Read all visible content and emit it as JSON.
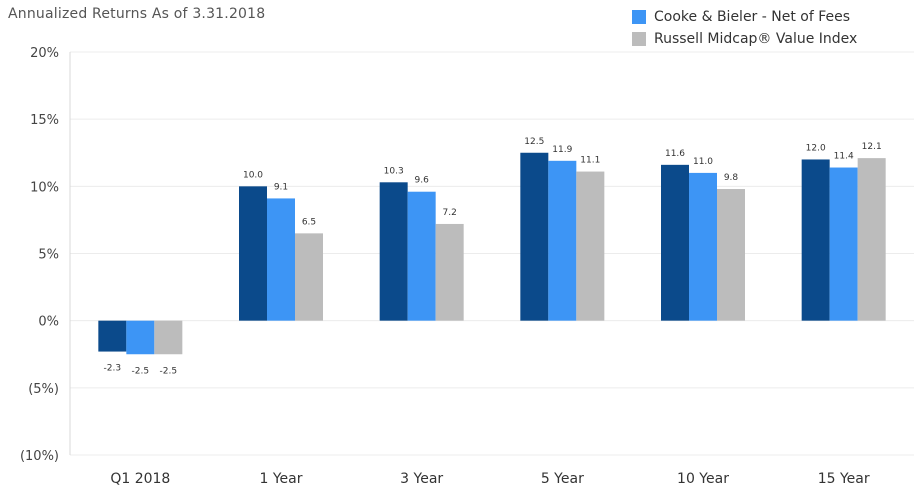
{
  "chart_data": {
    "type": "bar",
    "title": "Annualized Returns As of 3.31.2018",
    "categories": [
      "Q1 2018",
      "1 Year",
      "3 Year",
      "5 Year",
      "10 Year",
      "15 Year"
    ],
    "series": [
      {
        "name": "",
        "color": "#0b4a8b",
        "values": [
          -2.3,
          10.0,
          10.3,
          12.5,
          11.6,
          12.0
        ]
      },
      {
        "name": "Cooke & Bieler - Net of Fees",
        "color": "#3d95f5",
        "values": [
          -2.5,
          9.1,
          9.6,
          11.9,
          11.0,
          11.4
        ]
      },
      {
        "name": "Russell Midcap® Value Index",
        "color": "#bcbcbc",
        "values": [
          -2.5,
          6.5,
          7.2,
          11.1,
          9.8,
          12.1
        ]
      }
    ],
    "data_labels": [
      [
        "-2.3",
        "10.0",
        "10.3",
        "12.5",
        "11.6",
        "12.0"
      ],
      [
        "-2.5",
        "9.1",
        "9.6",
        "11.9",
        "11.0",
        "11.4"
      ],
      [
        "-2.5",
        "6.5",
        "7.2",
        "11.1",
        "9.8",
        "12.1"
      ]
    ],
    "ylim": [
      -10,
      20
    ],
    "yticks": [
      20,
      15,
      10,
      5,
      0,
      -5,
      -10
    ],
    "ytick_labels": [
      "20%",
      "15%",
      "10%",
      "5%",
      "0%",
      "(5%)",
      "(10%)"
    ],
    "grid": true,
    "legend_position": "top-right"
  }
}
